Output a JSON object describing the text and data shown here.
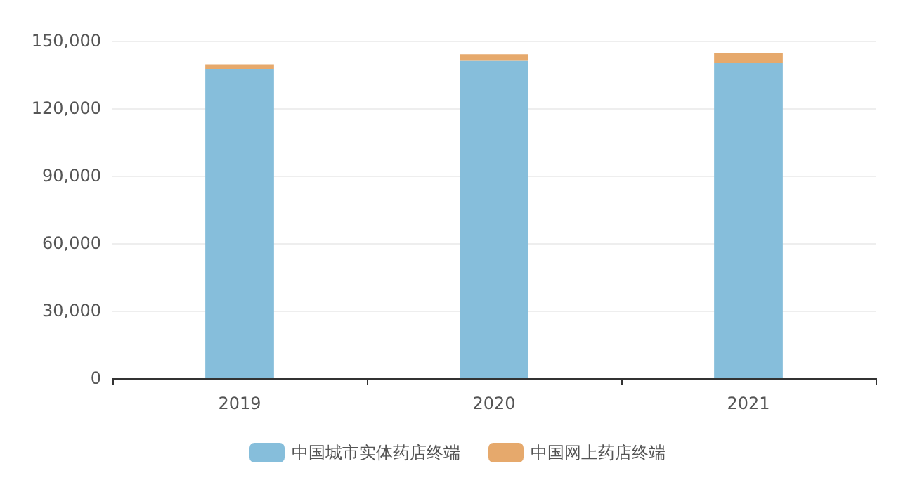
{
  "chart_data": {
    "type": "bar",
    "stacked": true,
    "categories": [
      "2019",
      "2020",
      "2021"
    ],
    "series": [
      {
        "name": "中国城市实体药店终端",
        "color": "#86bedb",
        "values": [
          137500,
          141100,
          140300
        ]
      },
      {
        "name": "中国网上药店终端",
        "color": "#e6a96c",
        "values": [
          2000,
          2900,
          4100
        ]
      }
    ],
    "ylim": [
      0,
      150000
    ],
    "yticks": [
      0,
      {
        "value": 30000,
        "label": "30,000"
      },
      {
        "value": 60000,
        "label": "60,000"
      },
      {
        "value": 90000,
        "label": "90,000"
      },
      {
        "value": 120000,
        "label": "120,000"
      },
      {
        "value": 150000,
        "label": "150,000"
      }
    ],
    "grid": "y",
    "legend": "bottom"
  }
}
